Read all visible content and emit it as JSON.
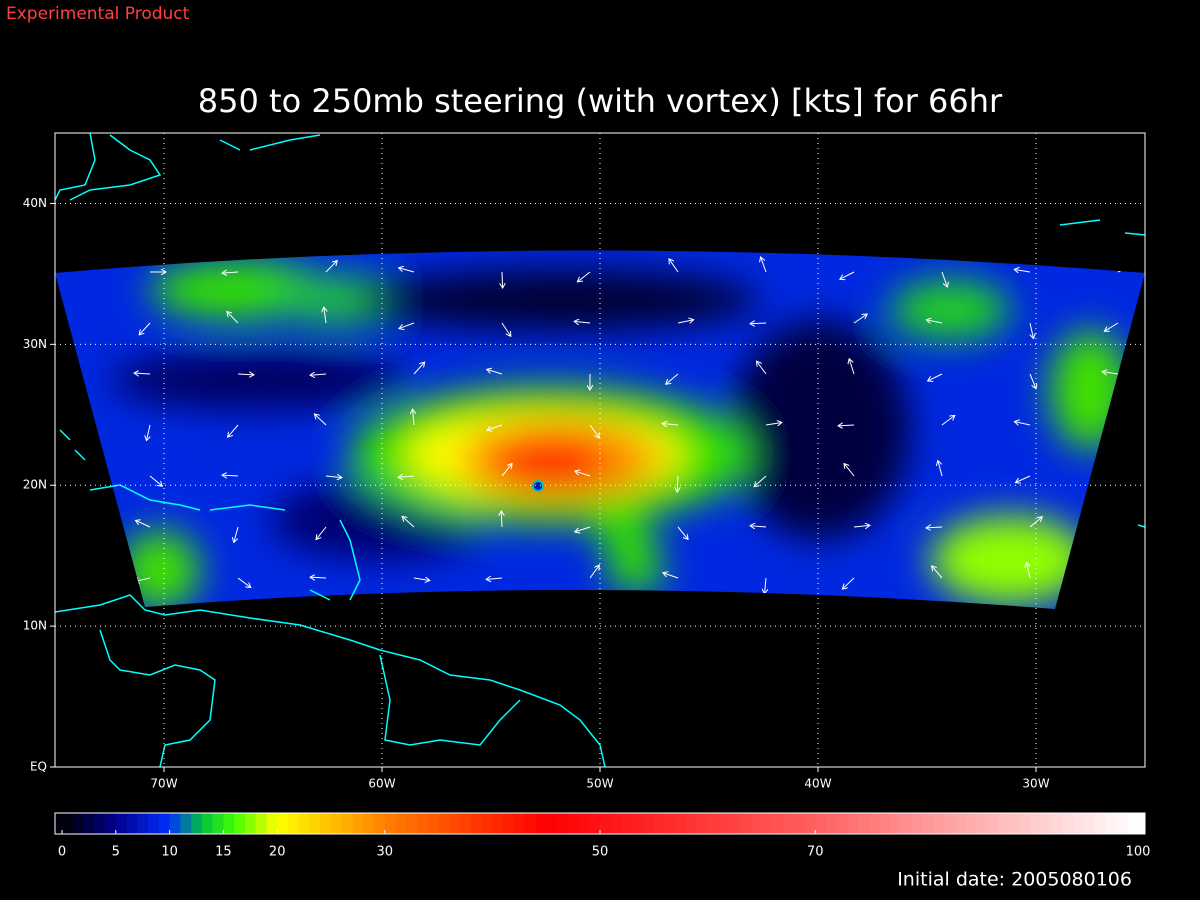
{
  "header": {
    "label": "Experimental Product"
  },
  "map": {
    "title": "850 to 250mb steering (with vortex) [kts] for 66hr",
    "lon_lim": [
      -75,
      -25
    ],
    "lat_lim": [
      0,
      45
    ],
    "lon_ticks": [
      {
        "value": -70,
        "label": "70W"
      },
      {
        "value": -60,
        "label": "60W"
      },
      {
        "value": -50,
        "label": "50W"
      },
      {
        "value": -40,
        "label": "40W"
      },
      {
        "value": -30,
        "label": "30W"
      }
    ],
    "lat_ticks": [
      {
        "value": 0,
        "label": "EQ"
      },
      {
        "value": 10,
        "label": "10N"
      },
      {
        "value": 20,
        "label": "20N"
      },
      {
        "value": 30,
        "label": "30N"
      },
      {
        "value": 40,
        "label": "40N"
      }
    ],
    "grid": true
  },
  "colorbar": {
    "lim": [
      0,
      100
    ],
    "ticks": [
      0,
      5,
      10,
      15,
      20,
      30,
      50,
      70,
      100
    ],
    "stops": [
      [
        0,
        "#000000"
      ],
      [
        5,
        "#00008c"
      ],
      [
        10,
        "#0030ff"
      ],
      [
        13,
        "#00c040"
      ],
      [
        16,
        "#40ff00"
      ],
      [
        20,
        "#ffff00"
      ],
      [
        30,
        "#ff8000"
      ],
      [
        45,
        "#ff0000"
      ],
      [
        70,
        "#ff6060"
      ],
      [
        100,
        "#ffffff"
      ]
    ]
  },
  "footer": {
    "initial_date": "Initial date: 2005080106"
  }
}
